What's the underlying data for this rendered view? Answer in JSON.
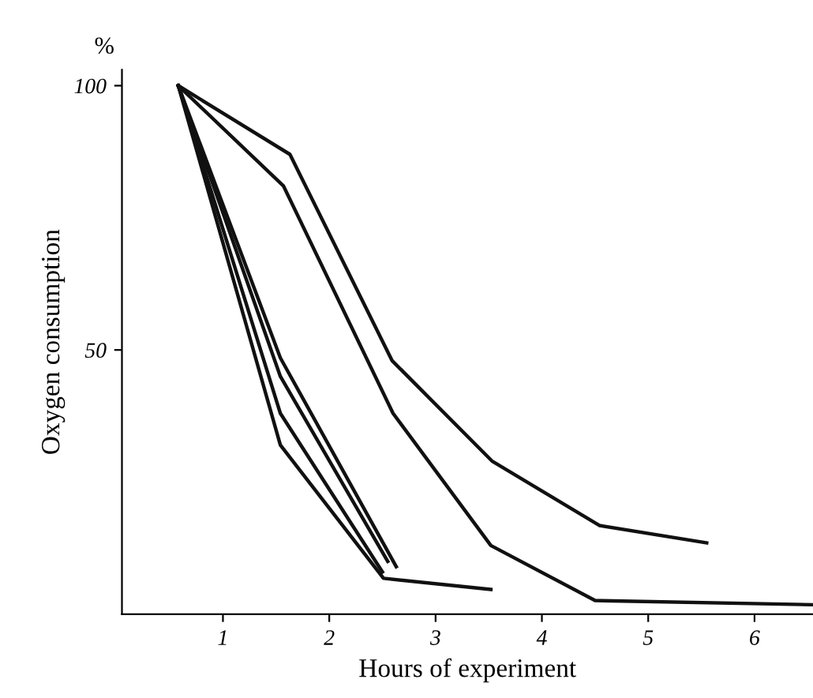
{
  "chart_data": {
    "type": "line",
    "xlabel": "Hours of experiment",
    "ylabel": "Oxygen consumption",
    "annotations": [
      "%"
    ],
    "xlim": [
      0.05,
      6.55
    ],
    "ylim": [
      0,
      103
    ],
    "xticks": [
      1,
      2,
      3,
      4,
      5,
      6
    ],
    "yticks": [
      50,
      100
    ],
    "grid": false,
    "marker": "none",
    "line_style": "solid",
    "series": [
      {
        "color": "#111111",
        "x": [
          0.58,
          1.63,
          2.59,
          3.53,
          4.54,
          5.55
        ],
        "values": [
          100,
          87,
          48,
          29,
          16.8,
          13.5
        ]
      },
      {
        "color": "#111111",
        "x": [
          0.58,
          1.57,
          2.6,
          3.52,
          4.5,
          6.55
        ],
        "values": [
          100,
          81,
          38,
          13,
          2.6,
          1.8
        ]
      },
      {
        "color": "#111111",
        "x": [
          0.58,
          1.54,
          2.51,
          3.52
        ],
        "values": [
          100,
          32,
          6.8,
          4.7
        ]
      },
      {
        "color": "#111111",
        "x": [
          0.58,
          1.54,
          2.5
        ],
        "values": [
          100,
          38,
          8
        ]
      },
      {
        "color": "#111111",
        "x": [
          0.58,
          1.54,
          2.55
        ],
        "values": [
          100,
          45,
          10
        ]
      },
      {
        "color": "#111111",
        "x": [
          0.58,
          1.54,
          2.63
        ],
        "values": [
          100,
          48.5,
          9
        ]
      }
    ]
  }
}
